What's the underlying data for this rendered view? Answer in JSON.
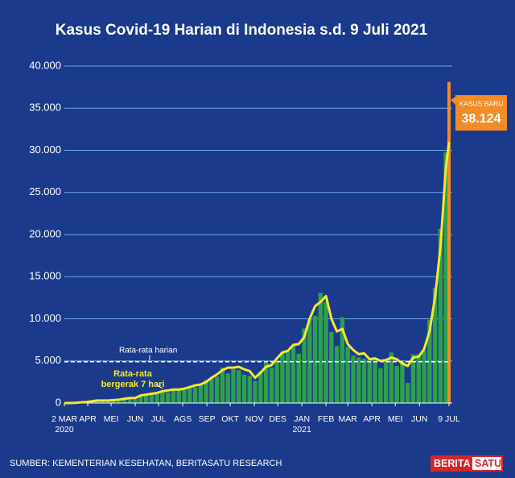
{
  "chart_data": {
    "type": "bar+line",
    "title": "Kasus Covid-19 Harian di Indonesia s.d. 9 Juli 2021",
    "x": [
      "2020-03-02",
      "2020-03-09",
      "2020-03-16",
      "2020-03-23",
      "2020-03-30",
      "2020-04-06",
      "2020-04-13",
      "2020-04-20",
      "2020-04-27",
      "2020-05-04",
      "2020-05-11",
      "2020-05-18",
      "2020-05-25",
      "2020-06-01",
      "2020-06-08",
      "2020-06-15",
      "2020-06-22",
      "2020-06-29",
      "2020-07-06",
      "2020-07-13",
      "2020-07-20",
      "2020-07-27",
      "2020-08-03",
      "2020-08-10",
      "2020-08-17",
      "2020-08-24",
      "2020-08-31",
      "2020-09-07",
      "2020-09-14",
      "2020-09-21",
      "2020-09-28",
      "2020-10-05",
      "2020-10-12",
      "2020-10-19",
      "2020-10-26",
      "2020-11-02",
      "2020-11-09",
      "2020-11-16",
      "2020-11-23",
      "2020-11-30",
      "2020-12-07",
      "2020-12-14",
      "2020-12-21",
      "2020-12-28",
      "2021-01-04",
      "2021-01-11",
      "2021-01-18",
      "2021-01-25",
      "2021-02-01",
      "2021-02-08",
      "2021-02-15",
      "2021-02-22",
      "2021-03-01",
      "2021-03-08",
      "2021-03-15",
      "2021-03-22",
      "2021-03-29",
      "2021-04-05",
      "2021-04-12",
      "2021-04-19",
      "2021-04-26",
      "2021-05-03",
      "2021-05-10",
      "2021-05-17",
      "2021-05-24",
      "2021-05-31",
      "2021-06-07",
      "2021-06-14",
      "2021-06-21",
      "2021-06-28",
      "2021-07-05",
      "2021-07-09"
    ],
    "series": [
      {
        "type": "bar",
        "color": "#2e9e4f",
        "highlight_color": "#f28c28",
        "values": [
          0,
          6,
          17,
          107,
          129,
          218,
          399,
          185,
          214,
          395,
          233,
          496,
          479,
          467,
          847,
          1106,
          954,
          1082,
          1268,
          1282,
          1693,
          1525,
          1560,
          1853,
          1873,
          2081,
          2743,
          3046,
          3141,
          4176,
          3509,
          4007,
          3906,
          3373,
          3222,
          2618,
          3779,
          4798,
          4192,
          5092,
          6058,
          6120,
          6848,
          5854,
          8854,
          10046,
          10365,
          13094,
          12001,
          8435,
          6765,
          10180,
          6680,
          5633,
          5412,
          5251,
          5028,
          5324,
          4127,
          4952,
          6000,
          4404,
          4891,
          2385,
          5797,
          5790,
          6294,
          9868,
          13668,
          20694,
          29745,
          38124
        ],
        "value_labels": [
          null,
          null,
          null,
          null,
          null,
          null,
          null,
          null,
          null,
          null,
          null,
          null,
          null,
          null,
          null,
          null,
          null,
          null,
          null,
          null,
          null,
          null,
          null,
          null,
          null,
          null,
          null,
          null,
          null,
          null,
          null,
          null,
          null,
          null,
          null,
          null,
          null,
          null,
          null,
          null,
          null,
          null,
          null,
          null,
          null,
          null,
          null,
          null,
          null,
          null,
          null,
          null,
          null,
          null,
          null,
          null,
          null,
          null,
          null,
          null,
          null,
          null,
          null,
          null,
          null,
          null,
          null,
          null,
          null,
          null,
          null,
          "38.124"
        ]
      },
      {
        "type": "line",
        "name": "Rata-rata bergerak 7 hari",
        "color": "#f5e830",
        "values": [
          0,
          3,
          20,
          80,
          120,
          200,
          300,
          300,
          300,
          350,
          400,
          500,
          600,
          600,
          900,
          1000,
          1100,
          1200,
          1400,
          1500,
          1600,
          1600,
          1700,
          1900,
          2100,
          2200,
          2500,
          3000,
          3400,
          3900,
          4200,
          4200,
          4300,
          4000,
          3800,
          3000,
          3600,
          4300,
          4500,
          5300,
          6000,
          6200,
          6900,
          7000,
          7800,
          10000,
          11500,
          12000,
          12700,
          10000,
          8500,
          8800,
          7000,
          6300,
          5800,
          5900,
          5200,
          5300,
          5000,
          5100,
          5400,
          5200,
          4700,
          4400,
          5400,
          5500,
          6400,
          8500,
          12500,
          18500,
          28000,
          31000
        ]
      }
    ],
    "callout_title": "KASUS BARU",
    "average_line": {
      "label": "Rata-rata harian",
      "value": 4900
    },
    "ylim": [
      0,
      40000
    ],
    "yticks": [
      0,
      {
        "value": 5000,
        "label": "5.000"
      },
      {
        "value": 10000,
        "label": "10.000"
      },
      {
        "value": 15000,
        "label": "15.000"
      },
      {
        "value": 20000,
        "label": "20.000"
      },
      {
        "value": 25000,
        "label": "25.000"
      },
      {
        "value": 30000,
        "label": "30.000"
      },
      {
        "value": 35000,
        "label": "35.000"
      },
      {
        "value": 40000,
        "label": "40.000"
      }
    ],
    "xlim": [
      "2020-03-02",
      "2021-07-09"
    ],
    "xticks": [
      {
        "value": "2020-03-02",
        "label": "2 MAR\n2020"
      },
      {
        "value": "2020-04-01",
        "label": "APR"
      },
      {
        "value": "2020-05-01",
        "label": "MEI"
      },
      {
        "value": "2020-06-01",
        "label": "JUN"
      },
      {
        "value": "2020-07-01",
        "label": "JUL"
      },
      {
        "value": "2020-08-01",
        "label": "AGS"
      },
      {
        "value": "2020-09-01",
        "label": "SEP"
      },
      {
        "value": "2020-10-01",
        "label": "OKT"
      },
      {
        "value": "2020-11-01",
        "label": "NOV"
      },
      {
        "value": "2020-12-01",
        "label": "DES"
      },
      {
        "value": "2021-01-01",
        "label": "JAN\n2021"
      },
      {
        "value": "2021-02-01",
        "label": "FEB"
      },
      {
        "value": "2021-03-01",
        "label": "MAR"
      },
      {
        "value": "2021-04-01",
        "label": "APR"
      },
      {
        "value": "2021-05-01",
        "label": "MEI"
      },
      {
        "value": "2021-06-01",
        "label": "JUN"
      },
      {
        "value": "2021-07-09",
        "label": "9 JUL"
      }
    ],
    "grid": true,
    "source": "SUMBER: KEMENTERIAN KESEHATAN, BERITASATU RESEARCH",
    "logo": [
      "BERITA",
      "SATU"
    ]
  }
}
